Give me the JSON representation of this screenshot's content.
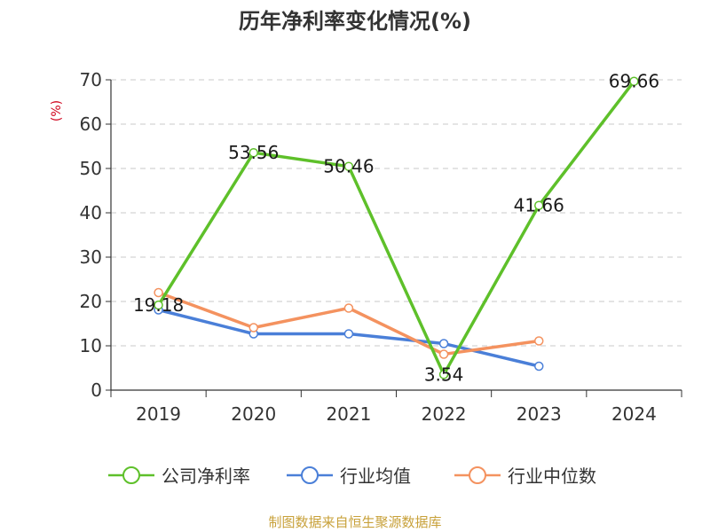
{
  "chart_data": {
    "type": "line",
    "title": "历年净利率变化情况(%)",
    "ylabel": "(%)",
    "categories": [
      "2019",
      "2020",
      "2021",
      "2022",
      "2023",
      "2024"
    ],
    "ylim": [
      0,
      70
    ],
    "yticks": [
      0,
      10,
      20,
      30,
      40,
      50,
      60,
      70
    ],
    "grid": true,
    "legend_position": "bottom",
    "series": [
      {
        "name": "公司净利率",
        "color": "#5ec02a",
        "values": [
          19.18,
          53.56,
          50.46,
          3.54,
          41.66,
          69.66
        ],
        "labels": [
          "19.18",
          "53.56",
          "50.46",
          "3.54",
          "41.66",
          "69.66"
        ]
      },
      {
        "name": "行业均值",
        "color": "#4a7fd8",
        "values": [
          18.1,
          12.7,
          12.7,
          10.5,
          5.4,
          null
        ]
      },
      {
        "name": "行业中位数",
        "color": "#f4925f",
        "values": [
          22.0,
          14.1,
          18.5,
          8.1,
          11.1,
          null
        ]
      }
    ]
  },
  "source": "制图数据来自恒生聚源数据库"
}
